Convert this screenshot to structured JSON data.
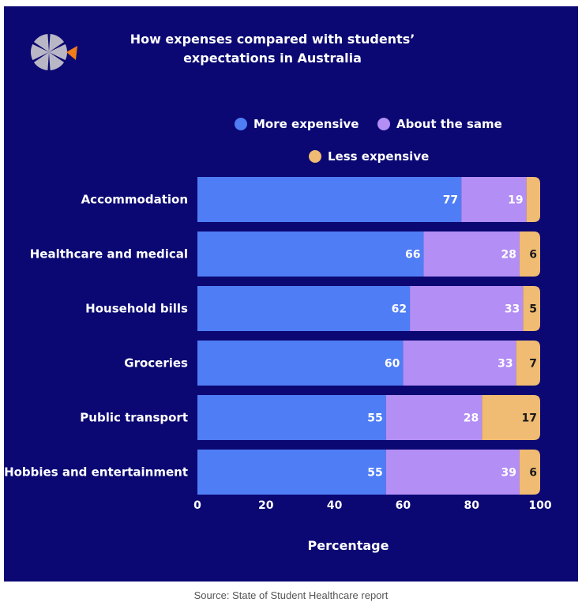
{
  "colors": {
    "background": "#0b0873",
    "more_expensive": "#4f7df5",
    "about_the_same": "#b38ef5",
    "less_expensive": "#f0bb72",
    "logo_gray": "#b9b7c6",
    "logo_orange": "#f07d1a"
  },
  "logo": {
    "icon": "pinwheel-logo-icon"
  },
  "source": "Source: State of Student Healthcare report",
  "chart_data": {
    "type": "bar",
    "orientation": "horizontal",
    "stacked": true,
    "title": "How expenses compared with students’ expectations in Australia",
    "xlabel": "Percentage",
    "ylabel": "",
    "xlim": [
      0,
      100
    ],
    "xticks": [
      "0",
      "20",
      "40",
      "60",
      "80",
      "100"
    ],
    "legend_position": "top",
    "grid": false,
    "categories": [
      "Accommodation",
      "Healthcare and medical",
      "Household bills",
      "Groceries",
      "Public transport",
      "Hobbies and entertainment"
    ],
    "series": [
      {
        "name": "More expensive",
        "values": [
          77,
          66,
          62,
          60,
          55,
          55
        ],
        "labels": [
          "77",
          "66",
          "62",
          "60",
          "55",
          "55"
        ]
      },
      {
        "name": "About the same",
        "values": [
          19,
          28,
          33,
          33,
          28,
          39
        ],
        "labels": [
          "19",
          "28",
          "33",
          "33",
          "28",
          "39"
        ]
      },
      {
        "name": "Less expensive",
        "values": [
          4,
          6,
          5,
          7,
          17,
          6
        ],
        "labels": [
          "",
          "6",
          "5",
          "7",
          "17",
          "6"
        ]
      }
    ]
  }
}
